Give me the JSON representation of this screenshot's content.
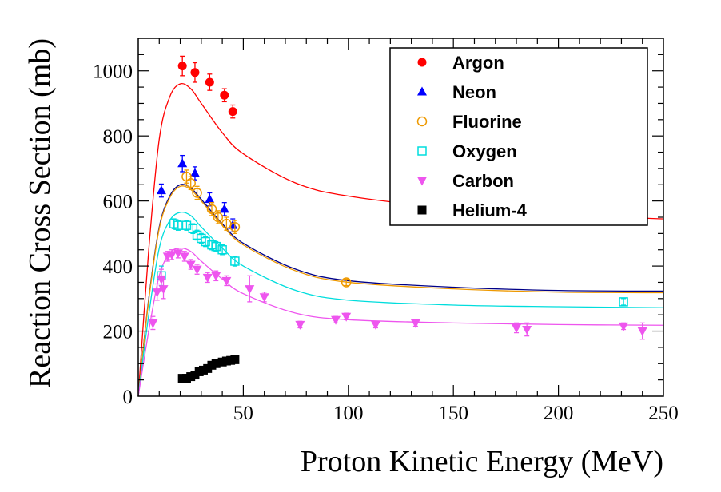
{
  "chart_data": {
    "type": "scatter",
    "title": "",
    "xlabel": "Proton Kinetic Energy (MeV)",
    "ylabel": "Reaction Cross Section (mb)",
    "xlim": [
      0,
      250
    ],
    "ylim": [
      0,
      1100
    ],
    "xticks": [
      50,
      100,
      150,
      200,
      250
    ],
    "yticks": [
      0,
      200,
      400,
      600,
      800,
      1000
    ],
    "legend_position": "top-right",
    "series": [
      {
        "name": "Argon",
        "color": "#ff0000",
        "marker": "circle-filled",
        "points": [
          [
            21,
            1015,
            30
          ],
          [
            27,
            995,
            30
          ],
          [
            34,
            965,
            25
          ],
          [
            41,
            925,
            20
          ],
          [
            45,
            875,
            20
          ]
        ]
      },
      {
        "name": "Neon",
        "color": "#0000ff",
        "marker": "triangle-up",
        "points": [
          [
            11,
            632,
            20
          ],
          [
            21,
            715,
            25
          ],
          [
            27,
            685,
            20
          ],
          [
            34,
            605,
            20
          ],
          [
            41,
            575,
            20
          ],
          [
            45,
            525,
            20
          ]
        ]
      },
      {
        "name": "Fluorine",
        "color": "#ee9900",
        "marker": "circle-open",
        "points": [
          [
            23,
            675,
            20
          ],
          [
            25,
            655,
            20
          ],
          [
            28,
            625,
            20
          ],
          [
            35,
            575,
            20
          ],
          [
            38,
            550,
            20
          ],
          [
            42,
            530,
            20
          ],
          [
            46,
            520,
            20
          ],
          [
            99,
            350,
            10
          ]
        ]
      },
      {
        "name": "Oxygen",
        "color": "#00dddd",
        "marker": "square-open",
        "points": [
          [
            11,
            370,
            30
          ],
          [
            17,
            530,
            15
          ],
          [
            19,
            525,
            15
          ],
          [
            23,
            525,
            15
          ],
          [
            26,
            515,
            15
          ],
          [
            28,
            495,
            15
          ],
          [
            30,
            485,
            15
          ],
          [
            32,
            475,
            15
          ],
          [
            35,
            465,
            15
          ],
          [
            37,
            460,
            15
          ],
          [
            40,
            450,
            15
          ],
          [
            46,
            415,
            15
          ],
          [
            231,
            290,
            10
          ]
        ]
      },
      {
        "name": "Carbon",
        "color": "#ee55ee",
        "marker": "triangle-down",
        "points": [
          [
            7,
            225,
            20
          ],
          [
            9,
            320,
            25
          ],
          [
            11,
            360,
            30
          ],
          [
            12,
            330,
            30
          ],
          [
            14,
            430,
            15
          ],
          [
            16,
            435,
            15
          ],
          [
            19,
            440,
            15
          ],
          [
            22,
            430,
            15
          ],
          [
            25,
            405,
            15
          ],
          [
            28,
            390,
            15
          ],
          [
            33,
            365,
            15
          ],
          [
            37,
            370,
            15
          ],
          [
            42,
            355,
            15
          ],
          [
            53,
            330,
            40
          ],
          [
            60,
            305,
            15
          ],
          [
            77,
            220,
            10
          ],
          [
            94,
            235,
            10
          ],
          [
            99,
            245,
            10
          ],
          [
            113,
            220,
            10
          ],
          [
            132,
            225,
            10
          ],
          [
            180,
            210,
            15
          ],
          [
            185,
            205,
            20
          ],
          [
            231,
            215,
            10
          ],
          [
            240,
            200,
            25
          ]
        ]
      },
      {
        "name": "Helium-4",
        "color": "#000000",
        "marker": "square-filled",
        "points": [
          [
            21,
            55
          ],
          [
            23,
            55
          ],
          [
            25,
            60
          ],
          [
            27,
            65
          ],
          [
            29,
            75
          ],
          [
            31,
            80
          ],
          [
            33,
            85
          ],
          [
            35,
            95
          ],
          [
            37,
            100
          ],
          [
            40,
            105
          ],
          [
            42,
            108
          ],
          [
            44,
            110
          ],
          [
            46,
            112
          ]
        ]
      }
    ],
    "fit_curves": [
      {
        "name": "Argon",
        "color": "#ff0000",
        "points": [
          [
            0,
            0
          ],
          [
            5,
            450
          ],
          [
            10,
            790
          ],
          [
            15,
            920
          ],
          [
            20,
            960
          ],
          [
            25,
            945
          ],
          [
            30,
            900
          ],
          [
            40,
            810
          ],
          [
            50,
            745
          ],
          [
            75,
            655
          ],
          [
            100,
            615
          ],
          [
            150,
            578
          ],
          [
            200,
            558
          ],
          [
            250,
            545
          ]
        ]
      },
      {
        "name": "Neon",
        "color": "#000088",
        "points": [
          [
            0,
            0
          ],
          [
            5,
            300
          ],
          [
            10,
            520
          ],
          [
            15,
            615
          ],
          [
            20,
            650
          ],
          [
            25,
            640
          ],
          [
            30,
            605
          ],
          [
            40,
            530
          ],
          [
            50,
            470
          ],
          [
            75,
            390
          ],
          [
            100,
            355
          ],
          [
            150,
            335
          ],
          [
            200,
            325
          ],
          [
            250,
            323
          ]
        ]
      },
      {
        "name": "Fluorine",
        "color": "#ee9900",
        "points": [
          [
            0,
            0
          ],
          [
            5,
            295
          ],
          [
            10,
            515
          ],
          [
            15,
            610
          ],
          [
            20,
            645
          ],
          [
            25,
            635
          ],
          [
            30,
            600
          ],
          [
            40,
            525
          ],
          [
            50,
            465
          ],
          [
            75,
            385
          ],
          [
            100,
            350
          ],
          [
            150,
            330
          ],
          [
            200,
            320
          ],
          [
            250,
            318
          ]
        ]
      },
      {
        "name": "Oxygen",
        "color": "#00dddd",
        "points": [
          [
            0,
            0
          ],
          [
            5,
            250
          ],
          [
            10,
            455
          ],
          [
            15,
            540
          ],
          [
            20,
            565
          ],
          [
            25,
            555
          ],
          [
            30,
            520
          ],
          [
            40,
            455
          ],
          [
            50,
            400
          ],
          [
            75,
            325
          ],
          [
            100,
            295
          ],
          [
            150,
            280
          ],
          [
            200,
            275
          ],
          [
            250,
            272
          ]
        ]
      },
      {
        "name": "Carbon",
        "color": "#ee55ee",
        "points": [
          [
            0,
            0
          ],
          [
            5,
            200
          ],
          [
            10,
            370
          ],
          [
            15,
            440
          ],
          [
            20,
            455
          ],
          [
            25,
            445
          ],
          [
            30,
            415
          ],
          [
            40,
            360
          ],
          [
            50,
            315
          ],
          [
            75,
            255
          ],
          [
            100,
            235
          ],
          [
            150,
            225
          ],
          [
            200,
            220
          ],
          [
            250,
            218
          ]
        ]
      }
    ]
  }
}
